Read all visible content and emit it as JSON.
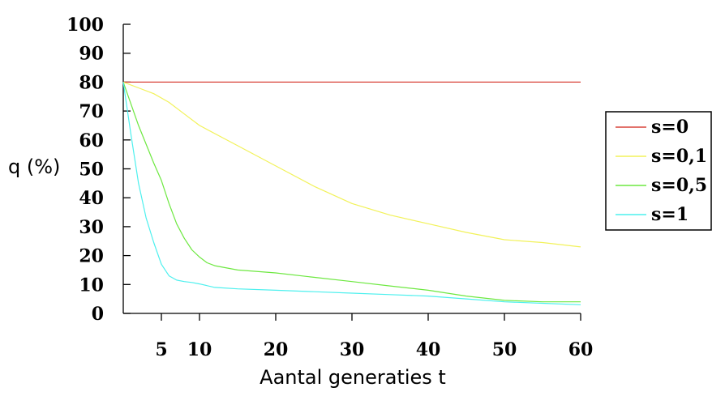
{
  "chart_data": {
    "type": "line",
    "title": "",
    "xlabel": "Aantal generaties t",
    "ylabel": "q (%)",
    "xlim": [
      0,
      60
    ],
    "ylim": [
      0,
      100
    ],
    "x_ticks": [
      5,
      10,
      20,
      30,
      40,
      50,
      60
    ],
    "y_ticks": [
      0,
      10,
      20,
      30,
      40,
      50,
      60,
      70,
      80,
      90,
      100
    ],
    "grid": false,
    "legend_position": "right",
    "series": [
      {
        "name": "s=0",
        "color": "#d9443a",
        "x": [
          0,
          60
        ],
        "y": [
          80,
          80
        ]
      },
      {
        "name": "s=0,1",
        "color": "#f2f25a",
        "x": [
          0,
          2,
          4,
          6,
          8,
          10,
          15,
          20,
          25,
          30,
          35,
          40,
          45,
          50,
          55,
          60
        ],
        "y": [
          80,
          78,
          76,
          73,
          69,
          65,
          58,
          51,
          44,
          38,
          34,
          31,
          28,
          25.5,
          24.5,
          23
        ]
      },
      {
        "name": "s=0,5",
        "color": "#6de840",
        "x": [
          0,
          2,
          4,
          5,
          6,
          7,
          8,
          9,
          10,
          11,
          12,
          13,
          15,
          20,
          25,
          30,
          35,
          40,
          45,
          50,
          55,
          60
        ],
        "y": [
          80,
          65,
          52,
          46,
          38,
          31,
          26,
          22,
          19.5,
          17.5,
          16.5,
          16,
          15,
          14,
          12.5,
          11,
          9.5,
          8,
          6,
          4.5,
          4,
          4
        ]
      },
      {
        "name": "s=1",
        "color": "#4df0ee",
        "x": [
          0,
          1,
          2,
          3,
          4,
          5,
          6,
          7,
          8,
          9,
          10,
          12,
          15,
          20,
          25,
          30,
          35,
          40,
          45,
          50,
          55,
          60
        ],
        "y": [
          80,
          62,
          45,
          33,
          24.5,
          17,
          13,
          11.5,
          11,
          10.7,
          10.2,
          9,
          8.5,
          8,
          7.5,
          7,
          6.5,
          6,
          5,
          4,
          3.5,
          3
        ]
      }
    ]
  }
}
